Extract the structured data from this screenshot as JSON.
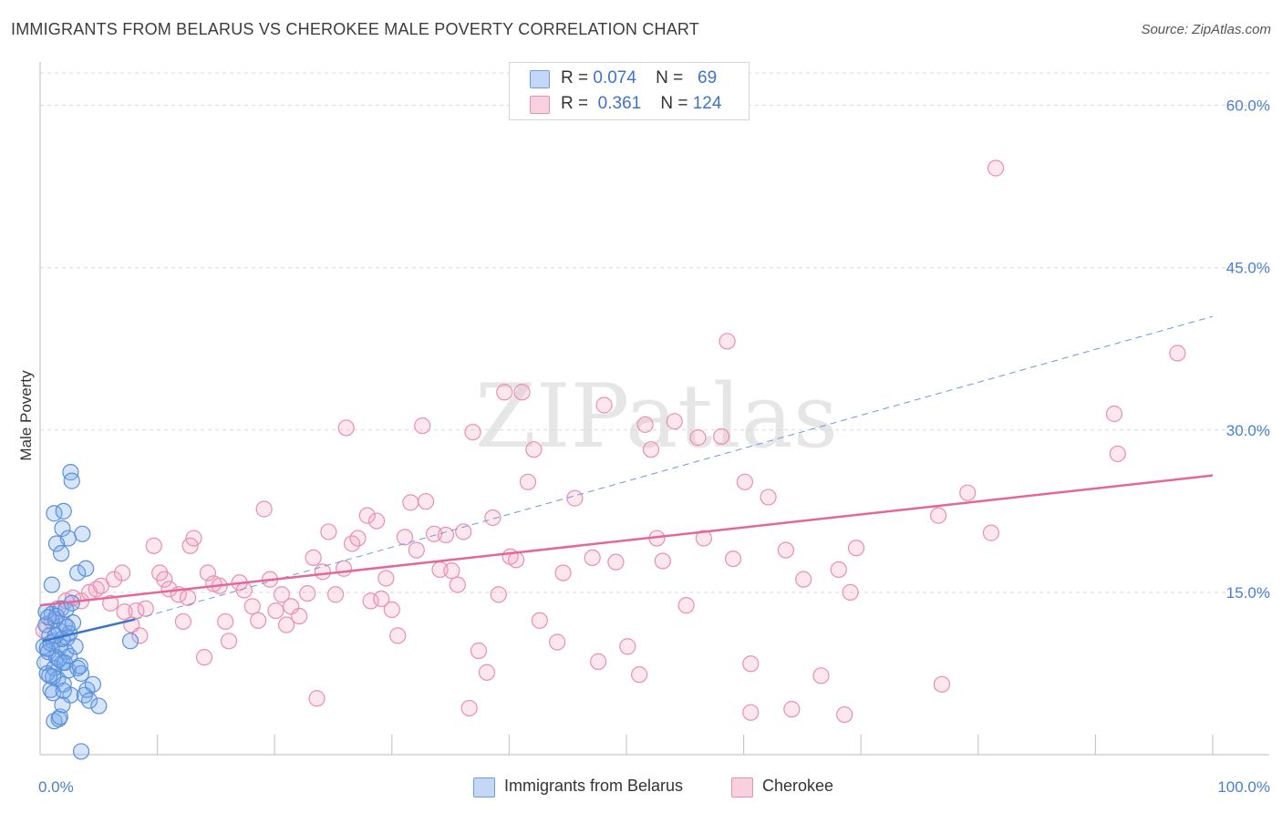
{
  "title": "IMMIGRANTS FROM BELARUS VS CHEROKEE MALE POVERTY CORRELATION CHART",
  "source": "Source: ZipAtlas.com",
  "watermark": "ZIPatlas",
  "legend_top": {
    "rows": [
      {
        "r_label": "R =",
        "r_value": "0.074",
        "n_label": "N =",
        "n_value": "69",
        "color": "#8fb8ee"
      },
      {
        "r_label": "R =",
        "r_value": "0.361",
        "n_label": "N =",
        "n_value": "124",
        "color": "#f5b3c8"
      }
    ]
  },
  "legend_bottom": [
    {
      "label": "Immigrants from Belarus",
      "color": "#8fb8ee"
    },
    {
      "label": "Cherokee",
      "color": "#f5b3c8"
    }
  ],
  "chart_data": {
    "type": "scatter",
    "title": "IMMIGRANTS FROM BELARUS VS CHEROKEE MALE POVERTY CORRELATION CHART",
    "xlabel": "",
    "ylabel": "Male Poverty",
    "xlim": [
      0,
      100
    ],
    "ylim": [
      0,
      63
    ],
    "x_tick_labels": [
      {
        "value": 0,
        "label": "0.0%"
      },
      {
        "value": 100,
        "label": "100.0%"
      }
    ],
    "y_ticks": [
      {
        "value": 15,
        "label": "15.0%"
      },
      {
        "value": 30,
        "label": "30.0%"
      },
      {
        "value": 45,
        "label": "45.0%"
      },
      {
        "value": 60,
        "label": "60.0%"
      }
    ],
    "x_minor_ticks": [
      10,
      20,
      30,
      40,
      50,
      60,
      70,
      80,
      90
    ],
    "series": [
      {
        "name": "Immigrants from Belarus",
        "color": "#5b8fd9",
        "r": 0.074,
        "n": 69,
        "trend_solid": [
          [
            0.2,
            10.5
          ],
          [
            8.1,
            12.5
          ]
        ],
        "trend_dashed": [
          [
            8.1,
            12.5
          ],
          [
            100,
            40.5
          ]
        ],
        "points": [
          [
            0.3,
            10.0
          ],
          [
            0.4,
            8.5
          ],
          [
            0.5,
            12.0
          ],
          [
            0.6,
            7.5
          ],
          [
            0.7,
            9.5
          ],
          [
            0.8,
            11.0
          ],
          [
            0.9,
            6.0
          ],
          [
            1.0,
            13.0
          ],
          [
            1.1,
            10.5
          ],
          [
            1.2,
            8.0
          ],
          [
            1.3,
            12.5
          ],
          [
            1.4,
            9.0
          ],
          [
            1.5,
            7.0
          ],
          [
            1.6,
            11.5
          ],
          [
            1.7,
            10.0
          ],
          [
            1.8,
            13.5
          ],
          [
            1.9,
            8.5
          ],
          [
            2.0,
            6.5
          ],
          [
            2.1,
            12.0
          ],
          [
            2.2,
            9.5
          ],
          [
            2.3,
            10.8
          ],
          [
            2.4,
            7.8
          ],
          [
            2.5,
            11.2
          ],
          [
            2.6,
            5.5
          ],
          [
            2.7,
            14.0
          ],
          [
            0.5,
            13.2
          ],
          [
            0.6,
            9.8
          ],
          [
            0.9,
            10.3
          ],
          [
            1.1,
            7.2
          ],
          [
            1.4,
            12.8
          ],
          [
            1.6,
            8.8
          ],
          [
            1.9,
            10.7
          ],
          [
            2.2,
            13.4
          ],
          [
            2.5,
            9.1
          ],
          [
            2.8,
            12.2
          ],
          [
            3.0,
            10.0
          ],
          [
            3.2,
            8.0
          ],
          [
            3.5,
            7.5
          ],
          [
            3.8,
            5.5
          ],
          [
            4.0,
            6.0
          ],
          [
            4.2,
            5.0
          ],
          [
            4.5,
            6.5
          ],
          [
            5.0,
            4.5
          ],
          [
            1.2,
            22.3
          ],
          [
            2.0,
            22.5
          ],
          [
            1.9,
            20.9
          ],
          [
            2.4,
            20.0
          ],
          [
            1.4,
            19.5
          ],
          [
            1.8,
            18.6
          ],
          [
            2.6,
            26.1
          ],
          [
            2.7,
            25.3
          ],
          [
            3.6,
            20.4
          ],
          [
            3.2,
            16.8
          ],
          [
            3.9,
            17.2
          ],
          [
            1.0,
            15.7
          ],
          [
            1.2,
            3.1
          ],
          [
            1.6,
            3.3
          ],
          [
            1.7,
            3.5
          ],
          [
            1.9,
            4.6
          ],
          [
            1.1,
            5.7
          ],
          [
            2.0,
            5.9
          ],
          [
            3.4,
            8.2
          ],
          [
            2.1,
            8.5
          ],
          [
            0.8,
            7.3
          ],
          [
            3.5,
            0.3
          ],
          [
            7.7,
            10.5
          ],
          [
            1.3,
            11.0
          ],
          [
            0.7,
            12.7
          ],
          [
            2.3,
            11.8
          ]
        ]
      },
      {
        "name": "Cherokee",
        "color": "#ea8fb0",
        "r": 0.361,
        "n": 124,
        "trend_solid": [
          [
            0,
            13.8
          ],
          [
            100,
            25.8
          ]
        ],
        "points": [
          [
            1.0,
            12.3
          ],
          [
            1.5,
            13.5
          ],
          [
            2.2,
            14.2
          ],
          [
            2.8,
            14.5
          ],
          [
            3.5,
            14.2
          ],
          [
            4.2,
            15.0
          ],
          [
            4.8,
            15.3
          ],
          [
            5.2,
            15.6
          ],
          [
            6.0,
            14.0
          ],
          [
            6.3,
            16.2
          ],
          [
            7.0,
            16.8
          ],
          [
            7.2,
            13.2
          ],
          [
            7.8,
            12.0
          ],
          [
            8.2,
            13.3
          ],
          [
            8.5,
            11.0
          ],
          [
            9.0,
            13.5
          ],
          [
            9.7,
            19.3
          ],
          [
            10.2,
            16.8
          ],
          [
            10.6,
            16.2
          ],
          [
            11.0,
            15.3
          ],
          [
            11.8,
            14.8
          ],
          [
            12.2,
            12.3
          ],
          [
            12.8,
            19.3
          ],
          [
            13.1,
            20.0
          ],
          [
            14.0,
            9.0
          ],
          [
            14.3,
            16.8
          ],
          [
            14.8,
            15.8
          ],
          [
            15.3,
            15.6
          ],
          [
            15.8,
            12.3
          ],
          [
            16.1,
            10.5
          ],
          [
            17.0,
            15.9
          ],
          [
            17.4,
            15.2
          ],
          [
            18.1,
            13.7
          ],
          [
            18.6,
            12.4
          ],
          [
            19.1,
            22.7
          ],
          [
            19.6,
            16.2
          ],
          [
            20.1,
            13.3
          ],
          [
            20.6,
            14.8
          ],
          [
            21.0,
            12.0
          ],
          [
            21.4,
            13.7
          ],
          [
            22.1,
            12.8
          ],
          [
            22.8,
            14.9
          ],
          [
            23.3,
            18.2
          ],
          [
            23.6,
            5.2
          ],
          [
            24.1,
            16.9
          ],
          [
            24.6,
            20.6
          ],
          [
            25.2,
            14.8
          ],
          [
            25.9,
            17.2
          ],
          [
            26.1,
            30.2
          ],
          [
            26.6,
            19.5
          ],
          [
            27.1,
            20.0
          ],
          [
            27.9,
            22.1
          ],
          [
            28.2,
            14.2
          ],
          [
            28.7,
            21.6
          ],
          [
            29.1,
            14.4
          ],
          [
            29.5,
            16.3
          ],
          [
            30.0,
            13.4
          ],
          [
            30.5,
            11.0
          ],
          [
            31.1,
            20.1
          ],
          [
            31.6,
            23.3
          ],
          [
            32.1,
            18.9
          ],
          [
            32.6,
            30.4
          ],
          [
            32.9,
            23.4
          ],
          [
            33.6,
            20.4
          ],
          [
            34.1,
            17.1
          ],
          [
            34.6,
            20.3
          ],
          [
            35.1,
            17.0
          ],
          [
            35.6,
            15.7
          ],
          [
            36.1,
            20.6
          ],
          [
            36.6,
            4.3
          ],
          [
            36.9,
            29.8
          ],
          [
            37.4,
            9.6
          ],
          [
            38.1,
            7.6
          ],
          [
            38.6,
            21.9
          ],
          [
            39.1,
            14.8
          ],
          [
            39.6,
            33.5
          ],
          [
            40.1,
            18.3
          ],
          [
            40.6,
            18.0
          ],
          [
            41.1,
            33.5
          ],
          [
            41.6,
            25.2
          ],
          [
            42.1,
            28.2
          ],
          [
            42.6,
            12.4
          ],
          [
            44.1,
            10.4
          ],
          [
            44.6,
            16.8
          ],
          [
            45.6,
            23.7
          ],
          [
            47.1,
            18.2
          ],
          [
            47.6,
            8.6
          ],
          [
            48.1,
            32.3
          ],
          [
            49.1,
            17.8
          ],
          [
            50.1,
            10.0
          ],
          [
            51.1,
            7.4
          ],
          [
            51.6,
            30.5
          ],
          [
            52.1,
            28.2
          ],
          [
            52.6,
            20.0
          ],
          [
            53.1,
            17.9
          ],
          [
            54.1,
            30.8
          ],
          [
            55.1,
            13.8
          ],
          [
            56.1,
            29.3
          ],
          [
            56.6,
            20.0
          ],
          [
            58.1,
            29.4
          ],
          [
            58.6,
            38.2
          ],
          [
            59.1,
            18.1
          ],
          [
            60.1,
            25.2
          ],
          [
            60.6,
            8.4
          ],
          [
            60.6,
            3.9
          ],
          [
            62.1,
            23.8
          ],
          [
            63.6,
            18.9
          ],
          [
            64.1,
            4.2
          ],
          [
            65.1,
            16.2
          ],
          [
            66.6,
            7.3
          ],
          [
            68.1,
            17.1
          ],
          [
            68.6,
            3.7
          ],
          [
            69.1,
            15.0
          ],
          [
            69.6,
            19.1
          ],
          [
            76.6,
            22.1
          ],
          [
            76.9,
            6.5
          ],
          [
            79.1,
            24.2
          ],
          [
            81.1,
            20.5
          ],
          [
            81.5,
            54.2
          ],
          [
            91.6,
            31.5
          ],
          [
            91.9,
            27.8
          ],
          [
            97.0,
            37.1
          ],
          [
            0.3,
            11.5
          ],
          [
            12.6,
            14.5
          ]
        ]
      }
    ]
  }
}
